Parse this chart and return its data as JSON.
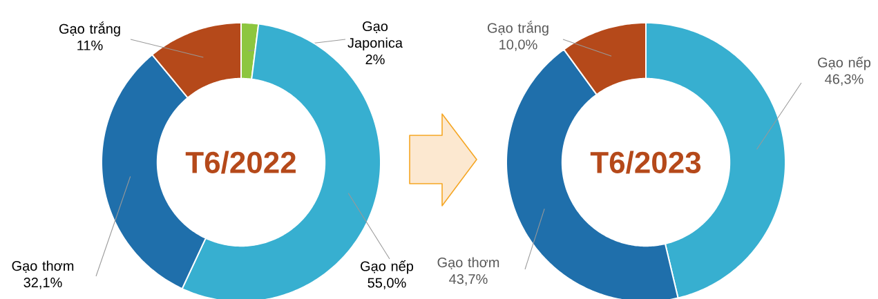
{
  "chart_data": [
    {
      "type": "donut",
      "title": "T6/2022",
      "categories": [
        "Gạo Japonica",
        "Gạo nếp",
        "Gạo thơm",
        "Gạo trắng"
      ],
      "values": [
        2,
        55.0,
        32.1,
        11
      ],
      "colors": [
        "#8dc63f",
        "#37afd0",
        "#1f6fab",
        "#b5491a"
      ],
      "value_labels": [
        "2%",
        "55,0%",
        "32,1%",
        "11%"
      ]
    },
    {
      "type": "donut",
      "title": "T6/2023",
      "categories": [
        "Gạo nếp",
        "Gạo thơm",
        "Gạo trắng"
      ],
      "values": [
        46.3,
        43.7,
        10.0
      ],
      "colors": [
        "#37afd0",
        "#1f6fab",
        "#b5491a"
      ],
      "value_labels": [
        "46,3%",
        "43,7%",
        "10,0%"
      ]
    }
  ]
}
